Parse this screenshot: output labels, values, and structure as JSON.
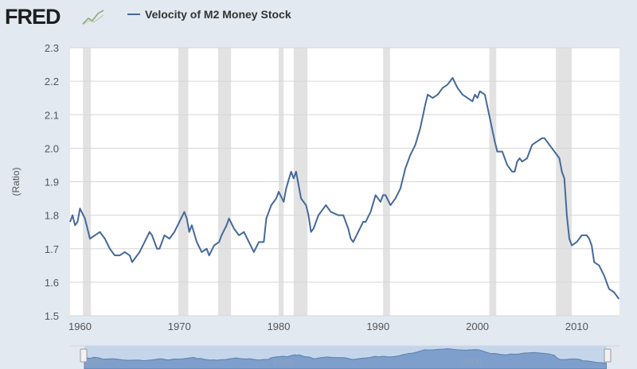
{
  "header": {
    "logo": "FRED",
    "legend_label": "Velocity of M2 Money Stock"
  },
  "colors": {
    "series": "#44699b",
    "recession": "#e2e2e2",
    "background": "#e3e9f1",
    "plot": "#ffffff"
  },
  "chart_data": {
    "type": "line",
    "title": "",
    "ylabel": "(Ratio)",
    "ylim": [
      1.5,
      2.3
    ],
    "xlim": [
      1959,
      2014.3
    ],
    "grid": true,
    "legend_position": "top-left",
    "y_ticks": [
      "1.5",
      "1.6",
      "1.7",
      "1.8",
      "1.9",
      "2.0",
      "2.1",
      "2.2",
      "2.3"
    ],
    "x_ticks": [
      "1960",
      "1970",
      "1980",
      "1990",
      "2000",
      "2010"
    ],
    "navigator_labels": [
      "1960",
      "1980",
      "2000"
    ],
    "recessions": [
      [
        1960.3,
        1961.1
      ],
      [
        1969.9,
        1970.9
      ],
      [
        1973.9,
        1975.2
      ],
      [
        1980.0,
        1980.5
      ],
      [
        1981.5,
        1982.9
      ],
      [
        1990.5,
        1991.2
      ],
      [
        2001.2,
        2001.9
      ],
      [
        2007.9,
        2009.5
      ]
    ],
    "series": [
      {
        "name": "Velocity of M2 Money Stock",
        "x": [
          1959,
          1959.25,
          1959.5,
          1959.75,
          1960,
          1960.5,
          1961,
          1961.5,
          1962,
          1962.5,
          1963,
          1963.5,
          1964,
          1964.5,
          1965,
          1965.25,
          1965.5,
          1966,
          1966.5,
          1967,
          1967.25,
          1967.75,
          1968,
          1968.5,
          1969,
          1969.5,
          1970,
          1970.5,
          1970.75,
          1971,
          1971.25,
          1971.75,
          1972.25,
          1972.75,
          1973,
          1973.5,
          1974,
          1974.25,
          1974.75,
          1975,
          1975.5,
          1976,
          1976.5,
          1977,
          1977.5,
          1978,
          1978.5,
          1978.75,
          1979.25,
          1979.75,
          1980,
          1980.5,
          1980.75,
          1981.25,
          1981.5,
          1981.75,
          1982.25,
          1982.75,
          1983,
          1983.25,
          1983.5,
          1984,
          1984.5,
          1984.75,
          1985.25,
          1986,
          1986.5,
          1987,
          1987.25,
          1987.5,
          1988,
          1988.5,
          1988.75,
          1989.25,
          1989.75,
          1990,
          1990.25,
          1990.5,
          1990.75,
          1991.25,
          1991.75,
          1992.25,
          1992.75,
          1993.25,
          1993.75,
          1994.25,
          1994.75,
          1995,
          1995.5,
          1996,
          1996.5,
          1997,
          1997.5,
          1998,
          1998.5,
          1999,
          1999.5,
          1999.75,
          2000,
          2000.25,
          2000.75,
          2001.25,
          2001.75,
          2002,
          2002.5,
          2003,
          2003.5,
          2003.75,
          2004,
          2004.25,
          2004.5,
          2005,
          2005.5,
          2006,
          2006.5,
          2006.75,
          2007.25,
          2007.75,
          2008.25,
          2008.5,
          2008.75,
          2009,
          2009.25,
          2009.5,
          2010,
          2010.5,
          2011,
          2011.25,
          2011.5,
          2011.75,
          2012.25,
          2012.75,
          2013.25,
          2013.75,
          2014.25
        ],
        "values": [
          1.78,
          1.8,
          1.77,
          1.78,
          1.82,
          1.79,
          1.73,
          1.74,
          1.75,
          1.73,
          1.7,
          1.68,
          1.68,
          1.69,
          1.68,
          1.66,
          1.67,
          1.69,
          1.72,
          1.75,
          1.74,
          1.7,
          1.7,
          1.74,
          1.73,
          1.75,
          1.78,
          1.81,
          1.79,
          1.75,
          1.77,
          1.72,
          1.69,
          1.7,
          1.68,
          1.71,
          1.72,
          1.74,
          1.77,
          1.79,
          1.76,
          1.74,
          1.75,
          1.72,
          1.69,
          1.72,
          1.72,
          1.79,
          1.83,
          1.85,
          1.87,
          1.84,
          1.88,
          1.93,
          1.91,
          1.93,
          1.85,
          1.83,
          1.8,
          1.75,
          1.76,
          1.8,
          1.82,
          1.83,
          1.81,
          1.8,
          1.8,
          1.76,
          1.73,
          1.72,
          1.75,
          1.78,
          1.78,
          1.81,
          1.86,
          1.85,
          1.84,
          1.86,
          1.86,
          1.83,
          1.85,
          1.88,
          1.94,
          1.98,
          2.01,
          2.06,
          2.13,
          2.16,
          2.15,
          2.16,
          2.18,
          2.19,
          2.21,
          2.18,
          2.16,
          2.15,
          2.14,
          2.16,
          2.15,
          2.17,
          2.16,
          2.09,
          2.02,
          1.99,
          1.99,
          1.95,
          1.93,
          1.93,
          1.96,
          1.97,
          1.96,
          1.97,
          2.01,
          2.02,
          2.03,
          2.03,
          2.01,
          1.99,
          1.97,
          1.93,
          1.91,
          1.8,
          1.73,
          1.71,
          1.72,
          1.74,
          1.74,
          1.73,
          1.71,
          1.66,
          1.65,
          1.62,
          1.58,
          1.57,
          1.55
        ]
      }
    ]
  }
}
